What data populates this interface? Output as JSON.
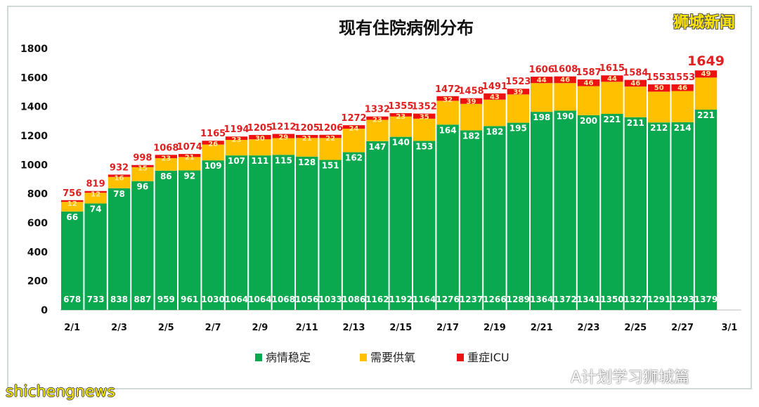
{
  "brand": "狮城新闻",
  "watermark": "A计划学习狮城篇",
  "source_watermark": "shichengnews",
  "chart_data": {
    "type": "bar",
    "stacked": true,
    "title": "现有住院病例分布",
    "categories": [
      "2/1",
      "2/2",
      "2/3",
      "2/4",
      "2/5",
      "2/6",
      "2/7",
      "2/8",
      "2/9",
      "2/10",
      "2/11",
      "2/12",
      "2/13",
      "2/14",
      "2/15",
      "2/16",
      "2/17",
      "2/18",
      "2/19",
      "2/20",
      "2/21",
      "2/22",
      "2/23",
      "2/24",
      "2/25",
      "2/26",
      "2/27",
      "2/28"
    ],
    "xtick_labels": [
      "2/1",
      "2/3",
      "2/5",
      "2/7",
      "2/9",
      "2/11",
      "2/13",
      "2/15",
      "2/17",
      "2/19",
      "2/21",
      "2/23",
      "2/25",
      "2/27",
      "3/1"
    ],
    "series": [
      {
        "name": "病情稳定",
        "color": "#0aa84f",
        "values": [
          678,
          733,
          838,
          887,
          959,
          961,
          1030,
          1064,
          1064,
          1068,
          1056,
          1033,
          1086,
          1162,
          1192,
          1164,
          1276,
          1237,
          1266,
          1289,
          1364,
          1372,
          1341,
          1350,
          1327,
          1291,
          1293,
          1379
        ]
      },
      {
        "name": "需要供氧",
        "color": "#ffc000",
        "values": [
          66,
          74,
          78,
          96,
          86,
          92,
          109,
          107,
          111,
          115,
          128,
          151,
          162,
          147,
          140,
          153,
          164,
          182,
          182,
          195,
          198,
          190,
          200,
          221,
          211,
          212,
          214,
          221
        ]
      },
      {
        "name": "重症ICU",
        "color": "#ee1111",
        "values": [
          12,
          12,
          16,
          15,
          23,
          21,
          26,
          23,
          30,
          29,
          21,
          22,
          24,
          23,
          23,
          35,
          32,
          39,
          43,
          39,
          44,
          46,
          46,
          44,
          46,
          50,
          46,
          49
        ]
      }
    ],
    "totals": [
      756,
      819,
      932,
      998,
      1068,
      1074,
      1165,
      1194,
      1205,
      1212,
      1205,
      1206,
      1272,
      1332,
      1355,
      1352,
      1472,
      1458,
      1491,
      1523,
      1606,
      1608,
      1587,
      1615,
      1584,
      1553,
      1553,
      1649
    ],
    "ylim": [
      0,
      1800
    ],
    "yticks": [
      0,
      200,
      400,
      600,
      800,
      1000,
      1200,
      1400,
      1600,
      1800
    ],
    "grid": false,
    "legend": "bottom"
  }
}
